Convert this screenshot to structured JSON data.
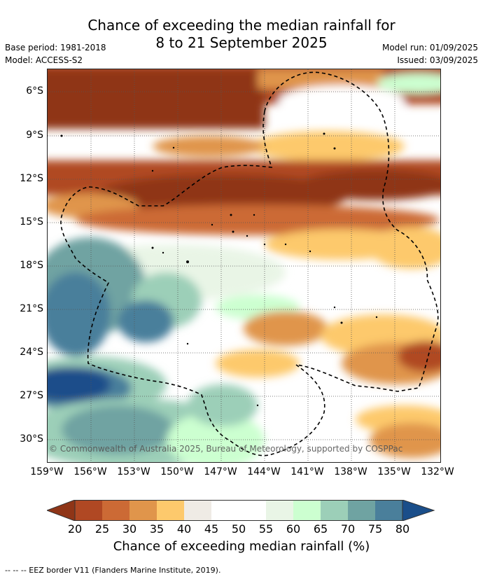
{
  "title": {
    "line1": "Chance of exceeding the median rainfall for",
    "line2": "8 to 21 September 2025"
  },
  "meta": {
    "base_period": "Base period: 1981-2018",
    "model": "Model: ACCESS-S2",
    "model_run": "Model run: 01/09/2025",
    "issued": "Issued: 03/09/2025"
  },
  "map": {
    "lat_labels": [
      "6°S",
      "9°S",
      "12°S",
      "15°S",
      "18°S",
      "21°S",
      "24°S",
      "27°S",
      "30°S"
    ],
    "lon_labels": [
      "159°W",
      "156°W",
      "153°W",
      "150°W",
      "147°W",
      "144°W",
      "141°W",
      "138°W",
      "135°W",
      "132°W"
    ],
    "copyright": "© Commonwealth of Australia 2025, Bureau of Meteorology, supported by COSPPac"
  },
  "colorbar": {
    "ticks": [
      "20",
      "25",
      "30",
      "35",
      "40",
      "45",
      "50",
      "55",
      "60",
      "65",
      "70",
      "75",
      "80"
    ],
    "colors": [
      "#8f3517",
      "#b04823",
      "#cc6a35",
      "#e0954b",
      "#fdc96c",
      "#efebe5",
      "#ffffff",
      "#ffffff",
      "#e9f5e6",
      "#ccffd0",
      "#9ccfb8",
      "#6fa3a2",
      "#4a7f9b",
      "#1a4e8a"
    ],
    "title": "Chance of exceeding median rainfall (%)"
  },
  "footnote": "--  --  -- EEZ border V11 (Flanders Marine Institute, 2019)."
}
